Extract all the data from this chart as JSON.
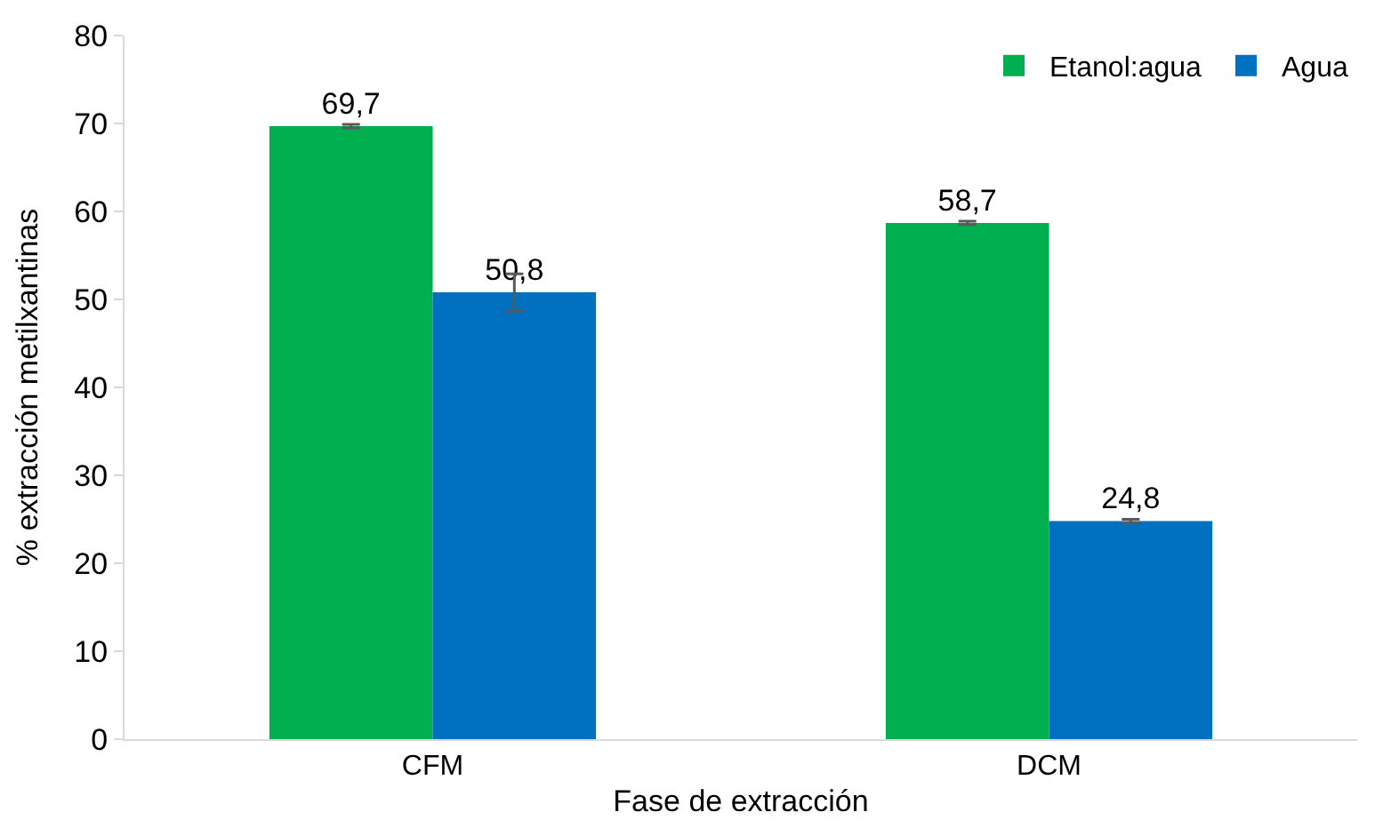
{
  "chart_data": {
    "type": "bar",
    "xlabel": "Fase de extracción",
    "ylabel": "% extracción metilxantinas",
    "categories": [
      "CFM",
      "DCM"
    ],
    "series": [
      {
        "name": "Etanol:agua",
        "color": "#00b050",
        "values": [
          69.7,
          58.7
        ],
        "errors": [
          0.2,
          0.2
        ],
        "value_labels": [
          "69,7",
          "58,7"
        ]
      },
      {
        "name": "Agua",
        "color": "#0070c0",
        "values": [
          50.8,
          24.8
        ],
        "errors": [
          2.1,
          0.2
        ],
        "value_labels": [
          "50,8",
          "24,8"
        ]
      }
    ],
    "ylim": [
      0,
      80
    ],
    "yticks": [
      0,
      10,
      20,
      30,
      40,
      50,
      60,
      70,
      80
    ],
    "grid": false,
    "legend": "top right"
  }
}
